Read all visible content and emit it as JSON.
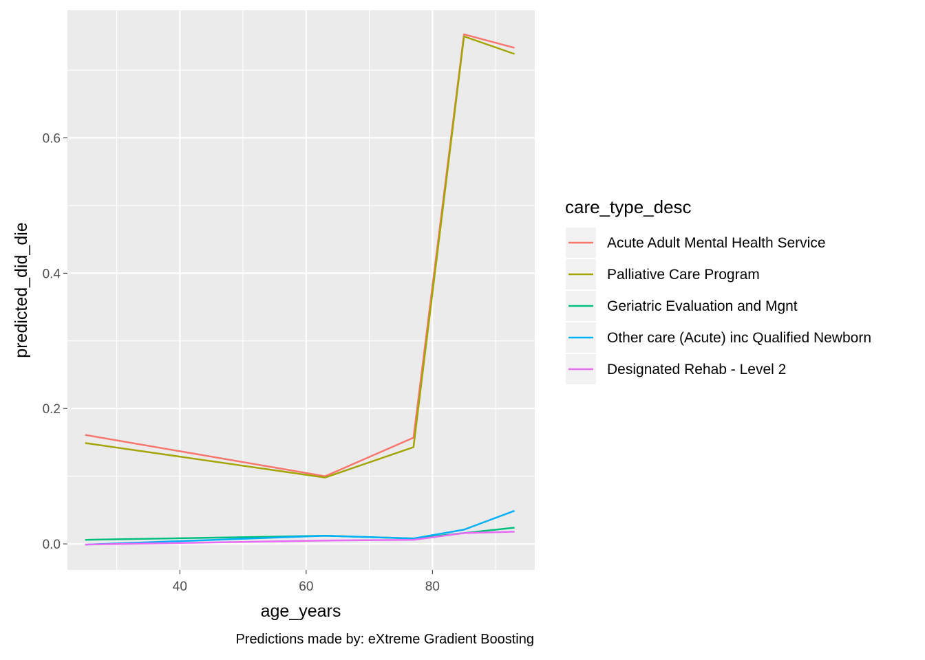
{
  "chart_data": {
    "type": "line",
    "xlabel": "age_years",
    "ylabel": "predicted_did_die",
    "caption": "Predictions made by: eXtreme Gradient Boosting",
    "legend_title": "care_type_desc",
    "legend_position": "right",
    "grid": true,
    "xlim": [
      22.2,
      96.2
    ],
    "ylim": [
      -0.0385,
      0.7885
    ],
    "x_ticks": [
      40,
      60,
      80
    ],
    "x_tick_labels": [
      "40",
      "60",
      "80"
    ],
    "x_minor": [
      30,
      50,
      70,
      90
    ],
    "y_ticks": [
      0.0,
      0.2,
      0.4,
      0.6
    ],
    "y_tick_labels": [
      "0.0",
      "0.2",
      "0.4",
      "0.6"
    ],
    "y_minor": [
      0.1,
      0.3,
      0.5,
      0.7
    ],
    "x": [
      25,
      63,
      77,
      85,
      93
    ],
    "series": [
      {
        "name": "Acute Adult Mental Health Service",
        "color": "#F8766D",
        "values": [
          0.161,
          0.1,
          0.157,
          0.753,
          0.733
        ]
      },
      {
        "name": "Palliative Care Program",
        "color": "#A3A500",
        "values": [
          0.149,
          0.098,
          0.143,
          0.75,
          0.724
        ]
      },
      {
        "name": "Geriatric Evaluation and Mgnt",
        "color": "#00BF7D",
        "values": [
          0.006,
          0.012,
          0.008,
          0.016,
          0.024
        ]
      },
      {
        "name": "Other care (Acute) inc Qualified Newborn",
        "color": "#00B0F6",
        "values": [
          -0.001,
          0.012,
          0.008,
          0.021,
          0.049
        ]
      },
      {
        "name": "Designated Rehab - Level 2",
        "color": "#E76BF3",
        "values": [
          -0.001,
          0.005,
          0.006,
          0.016,
          0.018
        ]
      }
    ]
  }
}
